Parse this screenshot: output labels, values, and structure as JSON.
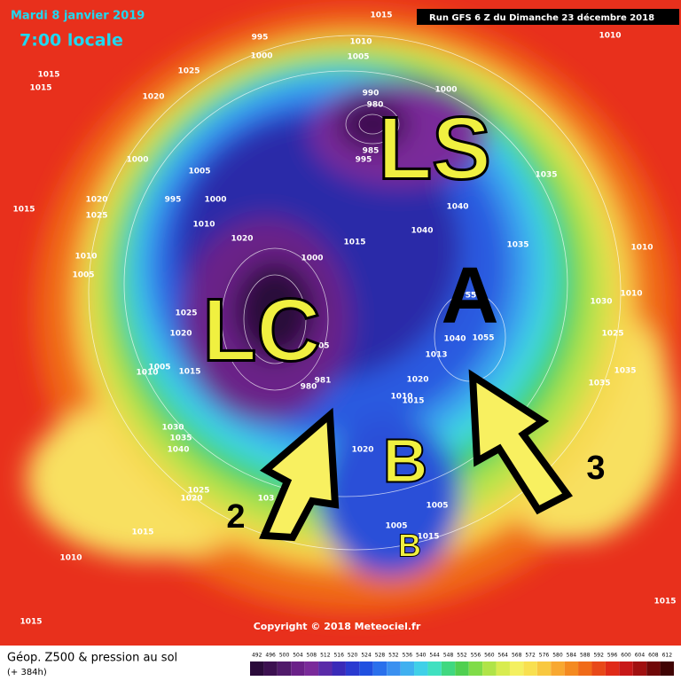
{
  "header": {
    "date": "Mardi 8 janvier 2019",
    "time": "7:00 locale",
    "run": "Run GFS 6 Z du Dimanche 23 décembre 2018"
  },
  "map": {
    "annotations": [
      "LS",
      "LC",
      "A",
      "B",
      "B",
      "2",
      "3"
    ],
    "isobar_labels": [
      1015,
      1010,
      995,
      1000,
      1010,
      1005,
      1025,
      1015,
      1015,
      1020,
      990,
      980,
      1000,
      1000,
      1005,
      995,
      1000,
      985,
      995,
      1035,
      1040,
      1020,
      1025,
      1015,
      1010,
      1020,
      1040,
      1015,
      1035,
      1010,
      1000,
      1010,
      1005,
      55,
      1010,
      1030,
      1025,
      1020,
      1025,
      1005,
      1055,
      1040,
      1013,
      1005,
      1010,
      1015,
      1035,
      981,
      980,
      1020,
      1035,
      1010,
      1015,
      1030,
      1035,
      1040,
      1020,
      1025,
      1020,
      103,
      1005,
      1015,
      1005,
      1015,
      1010,
      1015,
      1015
    ]
  },
  "footer": {
    "title": "Géop. Z500 & pression au sol",
    "lead": "(+ 384h)",
    "copyright": "Copyright © 2018 Meteociel.fr",
    "scale": [
      492,
      496,
      500,
      504,
      508,
      512,
      516,
      520,
      524,
      528,
      532,
      536,
      540,
      544,
      548,
      552,
      556,
      560,
      564,
      568,
      572,
      576,
      580,
      584,
      588,
      592,
      596,
      600,
      604,
      608,
      612
    ],
    "scale_colors": [
      "#2a0a3a",
      "#3c1050",
      "#501a6a",
      "#6a2088",
      "#7a2a9a",
      "#5a2aa8",
      "#3a2ab8",
      "#2a3ad0",
      "#2050e0",
      "#2a70ec",
      "#3a90f0",
      "#40b0f0",
      "#40d0e8",
      "#40e0c0",
      "#40d880",
      "#50d050",
      "#80dc48",
      "#b0e448",
      "#d8ec50",
      "#f4f060",
      "#f8e050",
      "#f8c840",
      "#f8a830",
      "#f48a20",
      "#f06a18",
      "#e84818",
      "#e02a18",
      "#c81818",
      "#a01010",
      "#700808",
      "#400404"
    ]
  }
}
